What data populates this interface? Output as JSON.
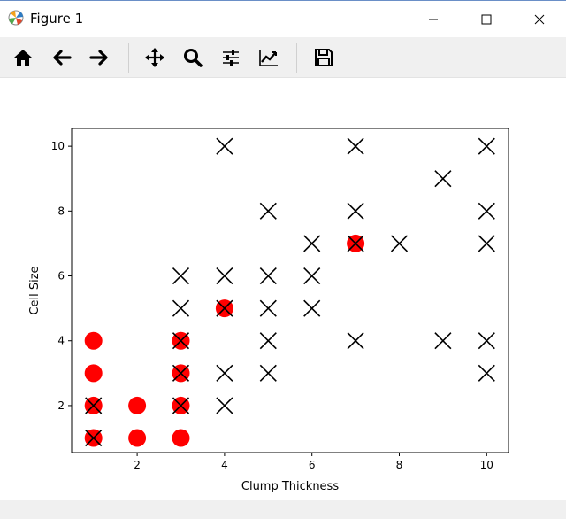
{
  "window": {
    "title": "Figure 1",
    "icons": {
      "app": "matplotlib-icon",
      "minimize": "minimize-icon",
      "maximize": "maximize-icon",
      "close": "close-icon"
    }
  },
  "toolbar": {
    "buttons": [
      {
        "name": "home-button",
        "icon": "home-icon"
      },
      {
        "name": "back-button",
        "icon": "arrow-left-icon"
      },
      {
        "name": "forward-button",
        "icon": "arrow-right-icon"
      },
      {
        "name": "pan-button",
        "icon": "move-icon"
      },
      {
        "name": "zoom-button",
        "icon": "magnifier-icon"
      },
      {
        "name": "subplots-button",
        "icon": "sliders-icon"
      },
      {
        "name": "edit-axes-button",
        "icon": "line-chart-icon"
      },
      {
        "name": "save-button",
        "icon": "floppy-disk-icon"
      }
    ]
  },
  "chart_data": {
    "type": "scatter",
    "title": "",
    "xlabel": "Clump Thickness",
    "ylabel": "Cell Size",
    "xlim": [
      0.5,
      10.5
    ],
    "ylim": [
      0.55,
      10.55
    ],
    "xticks": [
      2,
      4,
      6,
      8,
      10
    ],
    "yticks": [
      2,
      4,
      6,
      8,
      10
    ],
    "grid": false,
    "legend": "none",
    "series": [
      {
        "marker": "circle",
        "color": "#ff0000",
        "points": [
          [
            1,
            1
          ],
          [
            1,
            2
          ],
          [
            1,
            3
          ],
          [
            1,
            4
          ],
          [
            2,
            1
          ],
          [
            2,
            2
          ],
          [
            3,
            1
          ],
          [
            3,
            2
          ],
          [
            3,
            3
          ],
          [
            3,
            4
          ],
          [
            4,
            5
          ],
          [
            7,
            7
          ]
        ]
      },
      {
        "marker": "x",
        "color": "#000000",
        "points": [
          [
            1,
            1
          ],
          [
            1,
            2
          ],
          [
            3,
            2
          ],
          [
            3,
            3
          ],
          [
            3,
            4
          ],
          [
            3,
            5
          ],
          [
            3,
            6
          ],
          [
            4,
            2
          ],
          [
            4,
            3
          ],
          [
            4,
            5
          ],
          [
            4,
            6
          ],
          [
            4,
            10
          ],
          [
            5,
            3
          ],
          [
            5,
            4
          ],
          [
            5,
            5
          ],
          [
            5,
            6
          ],
          [
            5,
            8
          ],
          [
            6,
            5
          ],
          [
            6,
            6
          ],
          [
            6,
            7
          ],
          [
            7,
            4
          ],
          [
            7,
            7
          ],
          [
            7,
            8
          ],
          [
            7,
            10
          ],
          [
            8,
            7
          ],
          [
            9,
            4
          ],
          [
            9,
            9
          ],
          [
            10,
            3
          ],
          [
            10,
            4
          ],
          [
            10,
            7
          ],
          [
            10,
            8
          ],
          [
            10,
            10
          ]
        ]
      }
    ]
  }
}
